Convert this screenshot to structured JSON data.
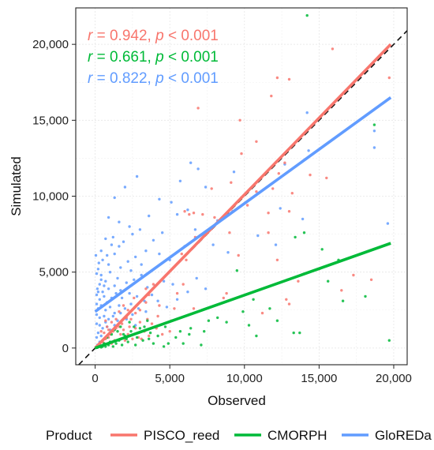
{
  "chart_data": {
    "type": "scatter",
    "xlabel": "Observed",
    "ylabel": "Simulated",
    "xlim": [
      -1300,
      20900
    ],
    "ylim": [
      -1100,
      22400
    ],
    "x_ticks": [
      0,
      5000,
      10000,
      15000,
      20000
    ],
    "x_tick_labels": [
      "0",
      "5,000",
      "10,000",
      "15,000",
      "20,000"
    ],
    "y_ticks": [
      0,
      5000,
      10000,
      15000,
      20000
    ],
    "y_tick_labels": [
      "0",
      "5,000",
      "10,000",
      "15,000",
      "20,000"
    ],
    "grid": true,
    "identity_line": true,
    "legend": {
      "title": "Product",
      "position": "bottom",
      "entries": [
        "PISCO_reed",
        "CMORPH",
        "GloREDa"
      ]
    },
    "annotations": [
      {
        "r_label": "r",
        "r_eq": " = 0.942, ",
        "p_label": "p",
        "p_eq": " < 0.001",
        "color": "#F8766D"
      },
      {
        "r_label": "r",
        "r_eq": " = 0.661, ",
        "p_label": "p",
        "p_eq": " < 0.001",
        "color": "#00BA38"
      },
      {
        "r_label": "r",
        "r_eq": " = 0.822, ",
        "p_label": "p",
        "p_eq": " < 0.001",
        "color": "#619CFF"
      }
    ],
    "series": [
      {
        "name": "PISCO_reed",
        "color": "#F8766D",
        "fit": {
          "x": [
            0,
            19800
          ],
          "y": [
            0,
            20000
          ]
        },
        "points": [
          [
            9700,
            15000
          ],
          [
            12200,
            17800
          ],
          [
            13000,
            17700
          ],
          [
            15900,
            19700
          ],
          [
            19700,
            17800
          ],
          [
            11800,
            16600
          ],
          [
            10800,
            13600
          ],
          [
            12700,
            12200
          ],
          [
            6900,
            15800
          ],
          [
            9800,
            12800
          ],
          [
            12300,
            11500
          ],
          [
            11900,
            10500
          ],
          [
            13200,
            10200
          ],
          [
            14400,
            11400
          ],
          [
            10800,
            10300
          ],
          [
            13000,
            9000
          ],
          [
            15500,
            11200
          ],
          [
            7800,
            10500
          ],
          [
            9100,
            10900
          ],
          [
            6000,
            9000
          ],
          [
            6300,
            8800
          ],
          [
            6600,
            8900
          ],
          [
            7200,
            8800
          ],
          [
            8000,
            8600
          ],
          [
            9200,
            9000
          ],
          [
            10200,
            9400
          ],
          [
            11600,
            8900
          ],
          [
            9000,
            7600
          ],
          [
            6700,
            7300
          ],
          [
            5800,
            6200
          ],
          [
            6100,
            5800
          ],
          [
            5900,
            4200
          ],
          [
            3900,
            4200
          ],
          [
            3400,
            3000
          ],
          [
            3000,
            2500
          ],
          [
            2700,
            2300
          ],
          [
            2400,
            1900
          ],
          [
            2100,
            2000
          ],
          [
            1800,
            1600
          ],
          [
            1600,
            1400
          ],
          [
            1400,
            1300
          ],
          [
            1200,
            1100
          ],
          [
            1000,
            900
          ],
          [
            900,
            700
          ],
          [
            700,
            600
          ],
          [
            500,
            400
          ],
          [
            300,
            200
          ],
          [
            150,
            100
          ],
          [
            2900,
            700
          ],
          [
            3100,
            600
          ],
          [
            4500,
            900
          ],
          [
            5000,
            1100
          ],
          [
            4200,
            2100
          ],
          [
            3800,
            1600
          ],
          [
            3500,
            1900
          ],
          [
            2200,
            900
          ],
          [
            2700,
            1300
          ],
          [
            800,
            1400
          ],
          [
            1100,
            1700
          ],
          [
            1400,
            1900
          ],
          [
            700,
            1800
          ],
          [
            400,
            1100
          ],
          [
            600,
            1000
          ],
          [
            1900,
            1200
          ],
          [
            2300,
            1400
          ],
          [
            3300,
            1100
          ],
          [
            4100,
            1300
          ],
          [
            5300,
            2600
          ],
          [
            6600,
            2600
          ],
          [
            8800,
            3600
          ],
          [
            11200,
            2300
          ],
          [
            13000,
            2900
          ],
          [
            12800,
            3200
          ],
          [
            17300,
            4800
          ],
          [
            16500,
            3800
          ],
          [
            18500,
            4500
          ],
          [
            12200,
            5800
          ],
          [
            15000,
            5200
          ],
          [
            13600,
            4400
          ],
          [
            11600,
            7600
          ],
          [
            8600,
            3300
          ],
          [
            9600,
            6100
          ],
          [
            3600,
            3500
          ],
          [
            4300,
            2800
          ],
          [
            2600,
            3300
          ],
          [
            3400,
            3900
          ],
          [
            5100,
            1800
          ],
          [
            1700,
            900
          ],
          [
            2500,
            600
          ],
          [
            1300,
            500
          ],
          [
            900,
            1200
          ],
          [
            600,
            300
          ],
          [
            1100,
            300
          ],
          [
            2000,
            500
          ],
          [
            3600,
            800
          ],
          [
            1600,
            2400
          ],
          [
            1900,
            2800
          ],
          [
            2200,
            2500
          ],
          [
            3000,
            1700
          ],
          [
            5500,
            3600
          ]
        ]
      },
      {
        "name": "CMORPH",
        "color": "#00BA38",
        "fit": {
          "x": [
            0,
            19800
          ],
          "y": [
            0,
            6900
          ]
        },
        "points": [
          [
            14200,
            21900
          ],
          [
            18700,
            14700
          ],
          [
            15600,
            4400
          ],
          [
            14000,
            7600
          ],
          [
            12900,
            4500
          ],
          [
            13400,
            7300
          ],
          [
            15200,
            6500
          ],
          [
            16300,
            5800
          ],
          [
            18100,
            3400
          ],
          [
            16600,
            3100
          ],
          [
            19700,
            500
          ],
          [
            9500,
            5100
          ],
          [
            10600,
            3200
          ],
          [
            11700,
            2600
          ],
          [
            12200,
            1800
          ],
          [
            13300,
            1000
          ],
          [
            13700,
            1000
          ],
          [
            10300,
            1500
          ],
          [
            8200,
            2000
          ],
          [
            8800,
            1700
          ],
          [
            7600,
            1800
          ],
          [
            6300,
            900
          ],
          [
            4700,
            1400
          ],
          [
            3900,
            300
          ],
          [
            2800,
            700
          ],
          [
            5700,
            1100
          ],
          [
            7100,
            200
          ],
          [
            5900,
            300
          ],
          [
            4200,
            800
          ],
          [
            4600,
            100
          ],
          [
            3700,
            1000
          ],
          [
            3200,
            500
          ],
          [
            2600,
            1400
          ],
          [
            2200,
            400
          ],
          [
            1800,
            200
          ],
          [
            1600,
            500
          ],
          [
            1400,
            300
          ],
          [
            1200,
            100
          ],
          [
            1000,
            400
          ],
          [
            900,
            200
          ],
          [
            700,
            100
          ],
          [
            600,
            300
          ],
          [
            500,
            100
          ],
          [
            400,
            50
          ],
          [
            300,
            200
          ],
          [
            200,
            100
          ],
          [
            150,
            30
          ],
          [
            100,
            80
          ],
          [
            50,
            20
          ],
          [
            1100,
            900
          ],
          [
            1300,
            1200
          ],
          [
            2000,
            800
          ],
          [
            2400,
            1100
          ],
          [
            3300,
            1400
          ],
          [
            3500,
            1800
          ],
          [
            3000,
            1300
          ],
          [
            2700,
            200
          ],
          [
            2100,
            600
          ],
          [
            1900,
            900
          ],
          [
            1500,
            1100
          ],
          [
            800,
            700
          ],
          [
            1700,
            1400
          ],
          [
            2300,
            1700
          ],
          [
            3600,
            600
          ],
          [
            4900,
            300
          ],
          [
            5400,
            700
          ],
          [
            6400,
            1300
          ],
          [
            7300,
            1100
          ],
          [
            9900,
            2400
          ],
          [
            10800,
            800
          ]
        ]
      },
      {
        "name": "GloREDa",
        "color": "#619CFF",
        "fit": {
          "x": [
            0,
            19800
          ],
          "y": [
            2400,
            16500
          ]
        },
        "points": [
          [
            14200,
            15500
          ],
          [
            18700,
            14300
          ],
          [
            14300,
            13000
          ],
          [
            12700,
            12100
          ],
          [
            18700,
            13200
          ],
          [
            19600,
            8200
          ],
          [
            9300,
            11600
          ],
          [
            6400,
            12200
          ],
          [
            6900,
            11800
          ],
          [
            5700,
            11000
          ],
          [
            7400,
            10600
          ],
          [
            2800,
            11300
          ],
          [
            2000,
            10600
          ],
          [
            4300,
            9800
          ],
          [
            5100,
            9600
          ],
          [
            6200,
            9100
          ],
          [
            5500,
            8800
          ],
          [
            3600,
            8700
          ],
          [
            1300,
            9900
          ],
          [
            900,
            8600
          ],
          [
            1600,
            8300
          ],
          [
            2500,
            7500
          ],
          [
            3000,
            7800
          ],
          [
            4500,
            7600
          ],
          [
            3900,
            7100
          ],
          [
            2300,
            8000
          ],
          [
            1900,
            7000
          ],
          [
            1200,
            7300
          ],
          [
            1600,
            6700
          ],
          [
            800,
            6100
          ],
          [
            1300,
            6200
          ],
          [
            500,
            5800
          ],
          [
            900,
            5500
          ],
          [
            1700,
            5300
          ],
          [
            2200,
            5700
          ],
          [
            3400,
            6400
          ],
          [
            4300,
            6200
          ],
          [
            5000,
            5800
          ],
          [
            6000,
            6700
          ],
          [
            6700,
            7800
          ],
          [
            8200,
            8400
          ],
          [
            7900,
            6800
          ],
          [
            8900,
            6300
          ],
          [
            10900,
            7400
          ],
          [
            12400,
            9200
          ],
          [
            13900,
            8500
          ],
          [
            12100,
            6800
          ],
          [
            200,
            5200
          ],
          [
            100,
            4900
          ],
          [
            400,
            4800
          ],
          [
            700,
            4400
          ],
          [
            300,
            4200
          ],
          [
            150,
            3900
          ],
          [
            500,
            3700
          ],
          [
            900,
            3900
          ],
          [
            1300,
            4100
          ],
          [
            1700,
            3800
          ],
          [
            2100,
            4300
          ],
          [
            2600,
            4500
          ],
          [
            3100,
            4800
          ],
          [
            3500,
            4000
          ],
          [
            4000,
            4100
          ],
          [
            4600,
            4400
          ],
          [
            5200,
            4200
          ],
          [
            100,
            3500
          ],
          [
            300,
            3200
          ],
          [
            600,
            3400
          ],
          [
            800,
            3000
          ],
          [
            1100,
            3300
          ],
          [
            1400,
            3600
          ],
          [
            1800,
            3300
          ],
          [
            2300,
            3600
          ],
          [
            2800,
            3400
          ],
          [
            3300,
            3100
          ],
          [
            3800,
            3500
          ],
          [
            100,
            2900
          ],
          [
            200,
            2600
          ],
          [
            400,
            2800
          ],
          [
            700,
            2500
          ],
          [
            1000,
            2700
          ],
          [
            1300,
            2300
          ],
          [
            1600,
            2800
          ],
          [
            2000,
            2600
          ],
          [
            2400,
            2900
          ],
          [
            100,
            2200
          ],
          [
            300,
            2000
          ],
          [
            600,
            2100
          ],
          [
            900,
            1900
          ],
          [
            1200,
            2100
          ],
          [
            1500,
            1800
          ],
          [
            100,
            1600
          ],
          [
            300,
            1500
          ],
          [
            500,
            1300
          ],
          [
            800,
            1400
          ],
          [
            1000,
            1200
          ],
          [
            200,
            1000
          ],
          [
            400,
            800
          ],
          [
            600,
            600
          ],
          [
            100,
            700
          ],
          [
            300,
            400
          ],
          [
            150,
            200
          ],
          [
            2500,
            2200
          ],
          [
            2900,
            2600
          ],
          [
            3400,
            2400
          ],
          [
            4200,
            3100
          ],
          [
            4800,
            2700
          ],
          [
            5500,
            3200
          ],
          [
            6200,
            3700
          ],
          [
            6800,
            4600
          ],
          [
            7400,
            3900
          ],
          [
            1700,
            2300
          ],
          [
            2100,
            1900
          ],
          [
            2700,
            1500
          ],
          [
            700,
            1700
          ],
          [
            1300,
            1500
          ],
          [
            400,
            4500
          ],
          [
            200,
            3700
          ],
          [
            600,
            4100
          ],
          [
            1000,
            5000
          ],
          [
            1500,
            4600
          ],
          [
            2400,
            5100
          ],
          [
            2700,
            6000
          ],
          [
            3100,
            5500
          ],
          [
            1100,
            6800
          ],
          [
            700,
            7200
          ],
          [
            400,
            6400
          ],
          [
            250,
            5600
          ],
          [
            50,
            6100
          ]
        ]
      }
    ]
  }
}
